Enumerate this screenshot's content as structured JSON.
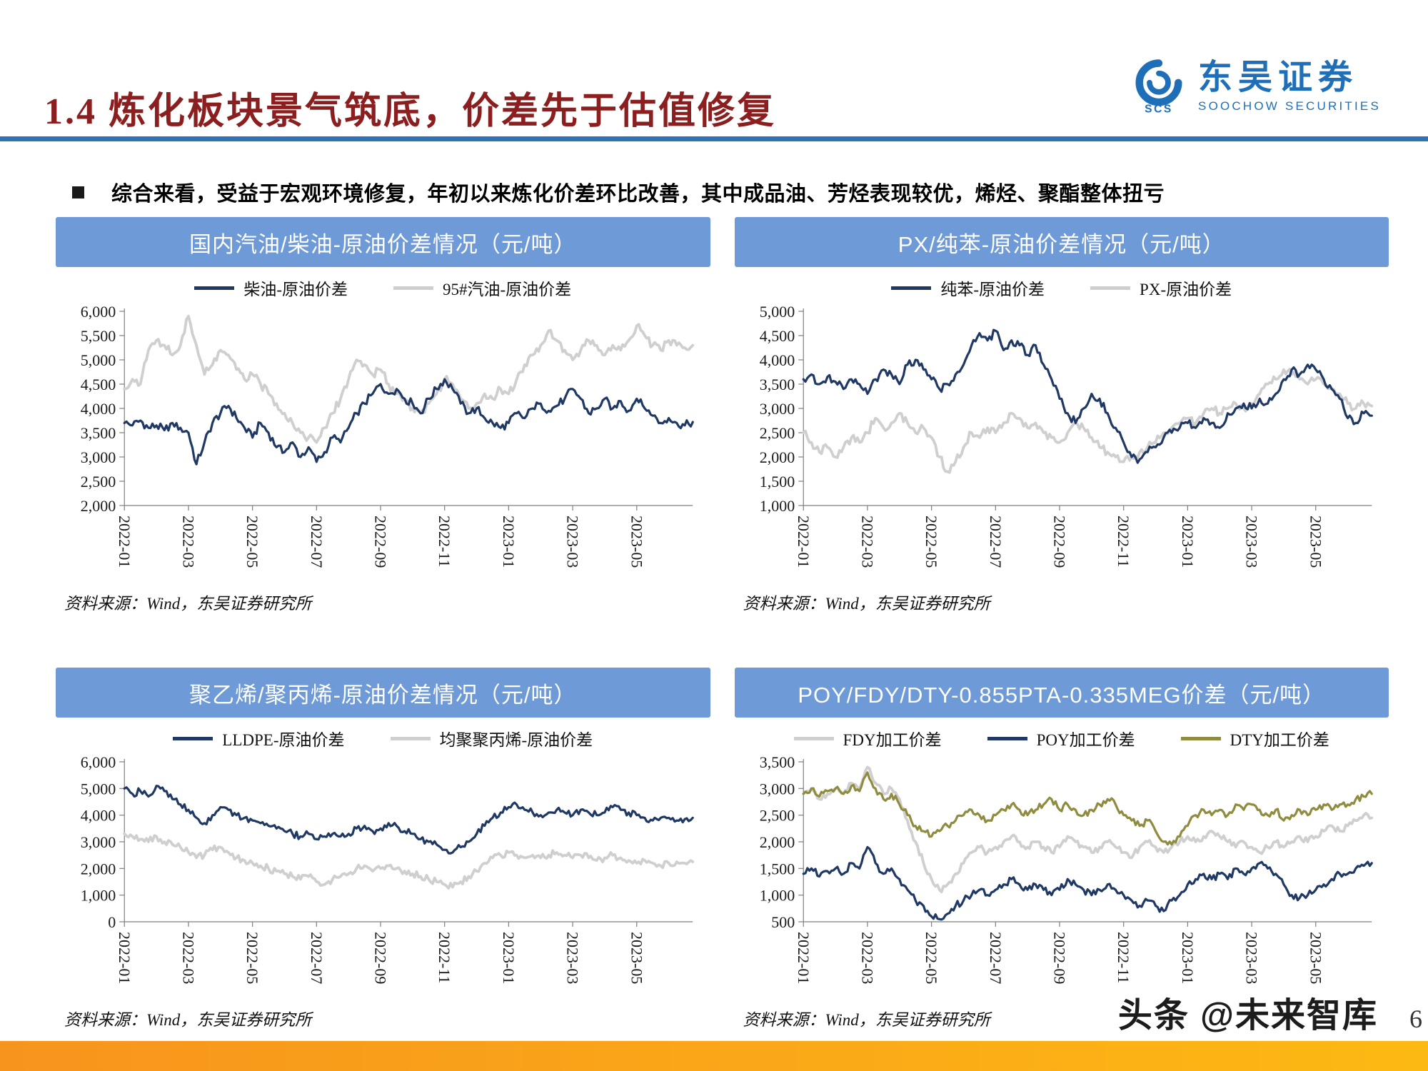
{
  "page": {
    "title": "1.4 炼化板块景气筑底，价差先于估值修复",
    "page_number": "6"
  },
  "logo": {
    "cn": "东吴证券",
    "en": "SOOCHOW SECURITIES",
    "icon_text": "SCS"
  },
  "bullet": {
    "text": "综合来看，受益于宏观环境修复，年初以来炼化价差环比改善，其中成品油、芳烃表现较优，烯烃、聚酯整体扭亏"
  },
  "source_note": "资料来源：Wind，东吴证券研究所",
  "watermark": "头条 @未来智库",
  "colors": {
    "navy": "#1F3864",
    "gray": "#CFCFCF",
    "olive": "#8F8C3F",
    "header_blue": "#6F9AD8",
    "divider_blue": "#2E74B5",
    "title_red": "#8B1E1E",
    "footer_orange": "#F7A21D"
  },
  "chart_data": [
    {
      "type": "line",
      "title": "国内汽油/柴油-原油价差情况（元/吨）",
      "ylim": [
        2000,
        6000
      ],
      "yticks": [
        2000,
        2500,
        3000,
        3500,
        4000,
        4500,
        5000,
        5500,
        6000
      ],
      "x_tick_labels": [
        "2022-01",
        "2022-03",
        "2022-05",
        "2022-07",
        "2022-09",
        "2022-11",
        "2023-01",
        "2023-03",
        "2023-05"
      ],
      "x_tick_positions": [
        0,
        8,
        16,
        24,
        32,
        40,
        48,
        56,
        64
      ],
      "n_points": 72,
      "series": [
        {
          "name": "柴油-原油价差",
          "color": "navy",
          "values": [
            3700,
            3650,
            3750,
            3600,
            3650,
            3550,
            3700,
            3600,
            3500,
            2850,
            3300,
            3700,
            3900,
            4050,
            3800,
            3600,
            3400,
            3700,
            3500,
            3200,
            3100,
            3300,
            3000,
            3200,
            2900,
            3100,
            3400,
            3300,
            3600,
            3900,
            4100,
            4300,
            4500,
            4300,
            4400,
            4200,
            4100,
            3900,
            4200,
            4400,
            4600,
            4400,
            4100,
            3900,
            4000,
            3800,
            3700,
            3600,
            3700,
            3900,
            3800,
            4000,
            4100,
            3950,
            4050,
            4200,
            4400,
            4200,
            3900,
            4000,
            4200,
            4000,
            4150,
            3950,
            4200,
            4000,
            3850,
            3700,
            3800,
            3700,
            3650,
            3720
          ]
        },
        {
          "name": "95#汽油-原油价差",
          "color": "gray",
          "values": [
            4400,
            4600,
            4500,
            5200,
            5400,
            5300,
            5100,
            5300,
            5900,
            5300,
            4700,
            4900,
            5200,
            5100,
            4800,
            4600,
            4700,
            4500,
            4300,
            4100,
            3900,
            3700,
            3500,
            3400,
            3300,
            3600,
            3900,
            4200,
            4600,
            5000,
            4900,
            4700,
            4800,
            4500,
            4300,
            4200,
            4000,
            3900,
            4100,
            4300,
            4600,
            4500,
            4200,
            4000,
            4100,
            4300,
            4200,
            4400,
            4300,
            4600,
            4900,
            5100,
            5300,
            5600,
            5400,
            5200,
            5000,
            5200,
            5400,
            5300,
            5100,
            5300,
            5200,
            5400,
            5700,
            5500,
            5300,
            5200,
            5400,
            5300,
            5250,
            5300
          ]
        }
      ]
    },
    {
      "type": "line",
      "title": "PX/纯苯-原油价差情况（元/吨）",
      "ylim": [
        1000,
        5000
      ],
      "yticks": [
        1000,
        1500,
        2000,
        2500,
        3000,
        3500,
        4000,
        4500,
        5000
      ],
      "x_tick_labels": [
        "2022-01",
        "2022-03",
        "2022-05",
        "2022-07",
        "2022-09",
        "2022-11",
        "2023-01",
        "2023-03",
        "2023-05"
      ],
      "x_tick_positions": [
        0,
        8,
        16,
        24,
        32,
        40,
        48,
        56,
        64
      ],
      "n_points": 72,
      "series": [
        {
          "name": "纯苯-原油价差",
          "color": "navy",
          "values": [
            3600,
            3700,
            3500,
            3650,
            3550,
            3400,
            3600,
            3500,
            3300,
            3600,
            3800,
            3700,
            3500,
            3900,
            4000,
            3800,
            3600,
            3400,
            3500,
            3700,
            3900,
            4300,
            4550,
            4400,
            4600,
            4200,
            4400,
            4300,
            4100,
            4300,
            3900,
            3600,
            3200,
            2900,
            2700,
            3000,
            3300,
            3200,
            2900,
            2600,
            2300,
            2000,
            1950,
            2100,
            2200,
            2400,
            2500,
            2600,
            2700,
            2600,
            2800,
            2700,
            2600,
            2900,
            3000,
            3100,
            3000,
            3200,
            3100,
            3300,
            3600,
            3800,
            3700,
            3900,
            3800,
            3600,
            3400,
            3200,
            2800,
            2700,
            2900,
            2850
          ]
        },
        {
          "name": "PX-原油价差",
          "color": "gray",
          "values": [
            2500,
            2300,
            2100,
            2200,
            2000,
            2200,
            2400,
            2300,
            2500,
            2800,
            2600,
            2700,
            2900,
            2700,
            2500,
            2600,
            2400,
            2000,
            1700,
            1900,
            2200,
            2500,
            2400,
            2600,
            2500,
            2700,
            2900,
            2800,
            2600,
            2700,
            2500,
            2400,
            2300,
            2500,
            2700,
            2600,
            2400,
            2200,
            2100,
            2000,
            1900,
            2000,
            2100,
            2200,
            2300,
            2500,
            2600,
            2700,
            2800,
            2700,
            2900,
            3000,
            2900,
            3000,
            3100,
            3000,
            3100,
            3300,
            3500,
            3600,
            3800,
            3700,
            3600,
            3500,
            3600,
            3500,
            3400,
            3300,
            3100,
            3000,
            3100,
            3050
          ]
        }
      ]
    },
    {
      "type": "line",
      "title": "聚乙烯/聚丙烯-原油价差情况（元/吨）",
      "ylim": [
        0,
        6000
      ],
      "yticks": [
        0,
        1000,
        2000,
        3000,
        4000,
        5000,
        6000
      ],
      "x_tick_labels": [
        "2022-01",
        "2022-03",
        "2022-05",
        "2022-07",
        "2022-09",
        "2022-11",
        "2023-01",
        "2023-03",
        "2023-05"
      ],
      "x_tick_positions": [
        0,
        8,
        16,
        24,
        32,
        40,
        48,
        56,
        64
      ],
      "n_points": 72,
      "series": [
        {
          "name": "LLDPE-原油价差",
          "color": "navy",
          "values": [
            5000,
            4800,
            4900,
            4700,
            5100,
            4900,
            4600,
            4400,
            4200,
            3900,
            3700,
            4000,
            4300,
            4200,
            4000,
            3900,
            3800,
            3700,
            3600,
            3500,
            3400,
            3300,
            3200,
            3300,
            3100,
            3200,
            3300,
            3200,
            3300,
            3500,
            3600,
            3400,
            3500,
            3700,
            3600,
            3400,
            3300,
            3100,
            3000,
            2900,
            2700,
            2600,
            2800,
            3000,
            3300,
            3600,
            3900,
            4100,
            4300,
            4400,
            4200,
            4100,
            4000,
            4100,
            4200,
            4100,
            4000,
            4200,
            4100,
            4000,
            4100,
            4300,
            4200,
            4100,
            4000,
            3900,
            3800,
            3900,
            3900,
            3800,
            3850,
            3900
          ]
        },
        {
          "name": "均聚聚丙烯-原油价差",
          "color": "gray",
          "values": [
            3300,
            3200,
            3100,
            3000,
            3200,
            3000,
            2900,
            2800,
            2600,
            2400,
            2500,
            2700,
            2800,
            2600,
            2400,
            2300,
            2200,
            2100,
            2000,
            1900,
            1800,
            1700,
            1600,
            1700,
            1500,
            1400,
            1600,
            1700,
            1800,
            2000,
            2100,
            1900,
            2000,
            2100,
            2000,
            1900,
            1800,
            1700,
            1600,
            1500,
            1400,
            1300,
            1500,
            1700,
            1900,
            2200,
            2400,
            2500,
            2600,
            2500,
            2400,
            2500,
            2400,
            2500,
            2600,
            2500,
            2400,
            2500,
            2400,
            2300,
            2400,
            2500,
            2400,
            2300,
            2200,
            2300,
            2200,
            2100,
            2200,
            2250,
            2200,
            2250
          ]
        }
      ]
    },
    {
      "type": "line",
      "title": "POY/FDY/DTY-0.855PTA-0.335MEG价差（元/吨）",
      "ylim": [
        500,
        3500
      ],
      "yticks": [
        500,
        1000,
        1500,
        2000,
        2500,
        3000,
        3500
      ],
      "x_tick_labels": [
        "2022-01",
        "2022-03",
        "2022-05",
        "2022-07",
        "2022-09",
        "2022-11",
        "2023-01",
        "2023-03",
        "2023-05"
      ],
      "x_tick_positions": [
        0,
        8,
        16,
        24,
        32,
        40,
        48,
        56,
        64
      ],
      "n_points": 72,
      "series": [
        {
          "name": "FDY加工价差",
          "color": "gray",
          "values": [
            2900,
            3000,
            2800,
            2900,
            3000,
            2900,
            3100,
            3000,
            3400,
            3100,
            2900,
            3000,
            2800,
            2400,
            2000,
            1600,
            1300,
            1100,
            1200,
            1400,
            1600,
            1800,
            1900,
            1800,
            1900,
            2000,
            2100,
            2000,
            1900,
            2000,
            1900,
            1800,
            1900,
            2100,
            2000,
            1900,
            1800,
            1900,
            2000,
            1900,
            1800,
            1700,
            1900,
            2000,
            1900,
            1800,
            1900,
            2000,
            2100,
            2000,
            2100,
            2200,
            2100,
            2000,
            1900,
            2000,
            1900,
            1800,
            1900,
            2000,
            1900,
            2000,
            2100,
            2000,
            2100,
            2200,
            2300,
            2200,
            2300,
            2400,
            2500,
            2450
          ]
        },
        {
          "name": "POY加工价差",
          "color": "navy",
          "values": [
            1400,
            1500,
            1350,
            1450,
            1500,
            1400,
            1600,
            1500,
            1900,
            1600,
            1400,
            1500,
            1300,
            1100,
            900,
            800,
            600,
            550,
            650,
            800,
            900,
            1000,
            1100,
            1000,
            1100,
            1200,
            1300,
            1200,
            1100,
            1200,
            1100,
            1000,
            1100,
            1300,
            1200,
            1100,
            1000,
            1100,
            1200,
            1100,
            1000,
            900,
            800,
            900,
            800,
            700,
            900,
            1000,
            1200,
            1300,
            1400,
            1300,
            1400,
            1300,
            1500,
            1400,
            1500,
            1600,
            1500,
            1400,
            1200,
            1000,
            950,
            1000,
            1100,
            1200,
            1300,
            1400,
            1400,
            1500,
            1550,
            1600
          ]
        },
        {
          "name": "DTY加工价差",
          "color": "olive",
          "values": [
            2900,
            3000,
            2850,
            2950,
            3000,
            2900,
            3050,
            2950,
            3300,
            3000,
            2800,
            2900,
            2700,
            2500,
            2300,
            2200,
            2100,
            2200,
            2300,
            2400,
            2500,
            2600,
            2500,
            2400,
            2500,
            2600,
            2700,
            2600,
            2500,
            2600,
            2700,
            2800,
            2600,
            2700,
            2600,
            2500,
            2600,
            2700,
            2800,
            2700,
            2500,
            2400,
            2300,
            2400,
            2200,
            2000,
            1950,
            2100,
            2300,
            2500,
            2600,
            2500,
            2600,
            2500,
            2700,
            2600,
            2700,
            2600,
            2500,
            2600,
            2400,
            2500,
            2600,
            2500,
            2600,
            2700,
            2600,
            2700,
            2700,
            2800,
            2850,
            2900
          ]
        }
      ]
    }
  ]
}
